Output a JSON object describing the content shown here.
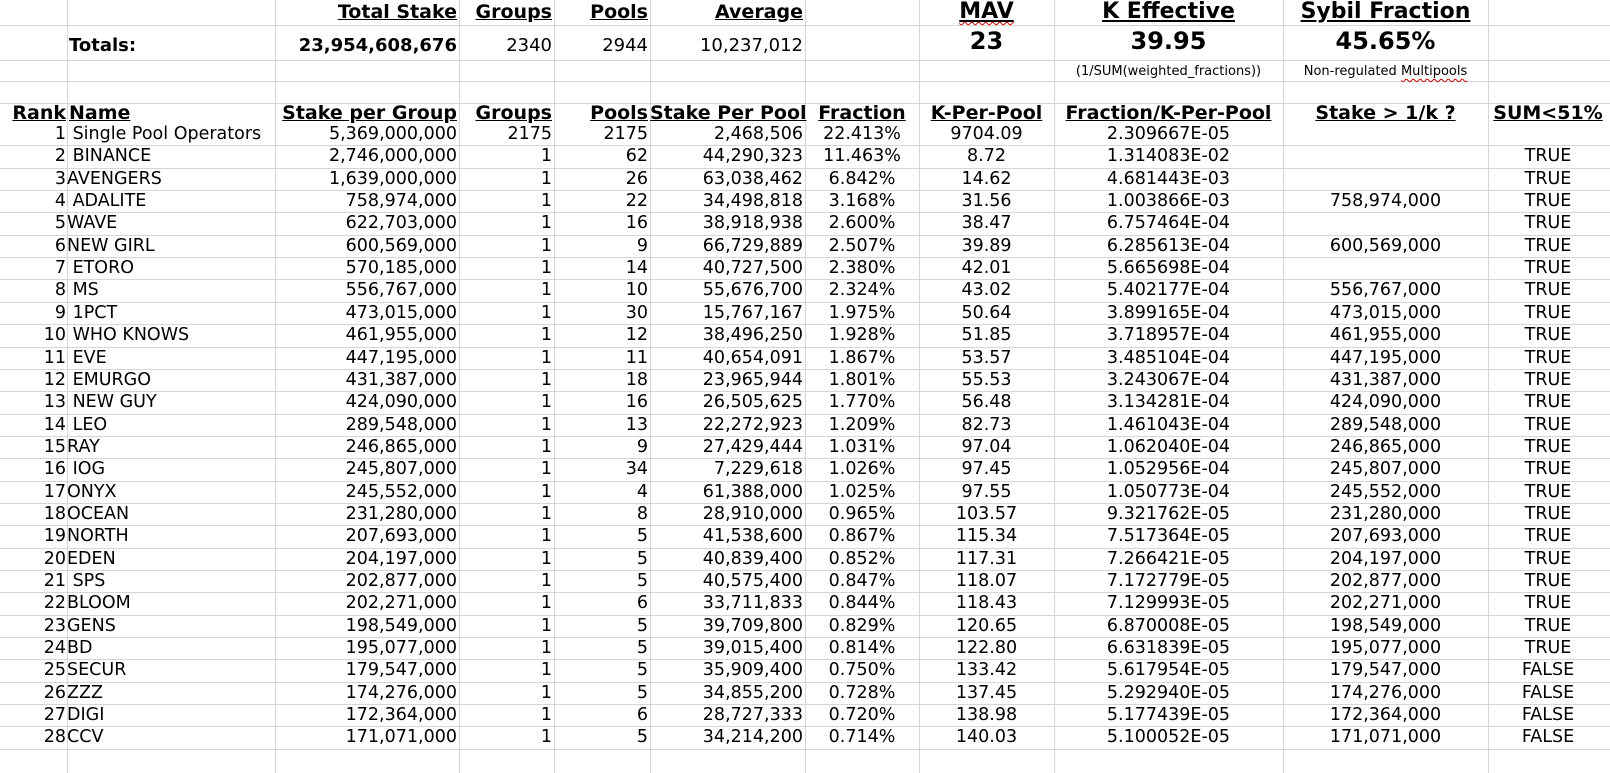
{
  "summary": {
    "headers": {
      "total_stake": "Total Stake",
      "groups": "Groups",
      "pools": "Pools",
      "average": "Average",
      "mav": "MAV",
      "k_effective": "K Effective",
      "sybil_fraction": "Sybil Fraction"
    },
    "totals_label": "Totals:",
    "total_stake": "23,954,608,676",
    "groups": "2340",
    "pools": "2944",
    "average": "10,237,012",
    "mav": "23",
    "k_effective": "39.95",
    "sybil_fraction": "45.65%",
    "k_effective_note": "(1/SUM(weighted_fractions))",
    "sybil_note_prefix": "Non-regulated ",
    "sybil_note_word": "Multipools"
  },
  "table": {
    "columns": {
      "rank": "Rank",
      "name": "Name",
      "stake_per_group": "Stake per Group",
      "groups": "Groups",
      "pools": "Pools",
      "stake_per_pool": "Stake Per Pool",
      "fraction": "Fraction",
      "k_per_pool": "K-Per-Pool",
      "fraction_k": "Fraction/K-Per-Pool",
      "stake_gt": "Stake > 1/k ?",
      "sum_lt": "SUM<51%"
    },
    "rows": [
      {
        "rank": "1",
        "name": " Single Pool Operators",
        "stake": "5,369,000,000",
        "groups": "2175",
        "pools": "2175",
        "spp": "2,468,506",
        "fraction": "22.413%",
        "kpp": "9704.09",
        "fk": "2.309667E-05",
        "sgt": "",
        "sum": ""
      },
      {
        "rank": "2",
        "name": " BINANCE",
        "stake": "2,746,000,000",
        "groups": "1",
        "pools": "62",
        "spp": "44,290,323",
        "fraction": "11.463%",
        "kpp": "8.72",
        "fk": "1.314083E-02",
        "sgt": "",
        "sum": "TRUE"
      },
      {
        "rank": "3",
        "name": "AVENGERS",
        "stake": "1,639,000,000",
        "groups": "1",
        "pools": "26",
        "spp": "63,038,462",
        "fraction": "6.842%",
        "kpp": "14.62",
        "fk": "4.681443E-03",
        "sgt": "",
        "sum": "TRUE"
      },
      {
        "rank": "4",
        "name": " ADALITE",
        "stake": "758,974,000",
        "groups": "1",
        "pools": "22",
        "spp": "34,498,818",
        "fraction": "3.168%",
        "kpp": "31.56",
        "fk": "1.003866E-03",
        "sgt": "758,974,000",
        "sum": "TRUE"
      },
      {
        "rank": "5",
        "name": "WAVE",
        "stake": "622,703,000",
        "groups": "1",
        "pools": "16",
        "spp": "38,918,938",
        "fraction": "2.600%",
        "kpp": "38.47",
        "fk": "6.757464E-04",
        "sgt": "",
        "sum": "TRUE"
      },
      {
        "rank": "6",
        "name": "NEW GIRL",
        "stake": "600,569,000",
        "groups": "1",
        "pools": "9",
        "spp": "66,729,889",
        "fraction": "2.507%",
        "kpp": "39.89",
        "fk": "6.285613E-04",
        "sgt": "600,569,000",
        "sum": "TRUE"
      },
      {
        "rank": "7",
        "name": " ETORO",
        "stake": "570,185,000",
        "groups": "1",
        "pools": "14",
        "spp": "40,727,500",
        "fraction": "2.380%",
        "kpp": "42.01",
        "fk": "5.665698E-04",
        "sgt": "",
        "sum": "TRUE"
      },
      {
        "rank": "8",
        "name": " MS",
        "stake": "556,767,000",
        "groups": "1",
        "pools": "10",
        "spp": "55,676,700",
        "fraction": "2.324%",
        "kpp": "43.02",
        "fk": "5.402177E-04",
        "sgt": "556,767,000",
        "sum": "TRUE"
      },
      {
        "rank": "9",
        "name": " 1PCT",
        "stake": "473,015,000",
        "groups": "1",
        "pools": "30",
        "spp": "15,767,167",
        "fraction": "1.975%",
        "kpp": "50.64",
        "fk": "3.899165E-04",
        "sgt": "473,015,000",
        "sum": "TRUE"
      },
      {
        "rank": "10",
        "name": " WHO KNOWS",
        "stake": "461,955,000",
        "groups": "1",
        "pools": "12",
        "spp": "38,496,250",
        "fraction": "1.928%",
        "kpp": "51.85",
        "fk": "3.718957E-04",
        "sgt": "461,955,000",
        "sum": "TRUE"
      },
      {
        "rank": "11",
        "name": " EVE",
        "stake": "447,195,000",
        "groups": "1",
        "pools": "11",
        "spp": "40,654,091",
        "fraction": "1.867%",
        "kpp": "53.57",
        "fk": "3.485104E-04",
        "sgt": "447,195,000",
        "sum": "TRUE"
      },
      {
        "rank": "12",
        "name": " EMURGO",
        "stake": "431,387,000",
        "groups": "1",
        "pools": "18",
        "spp": "23,965,944",
        "fraction": "1.801%",
        "kpp": "55.53",
        "fk": "3.243067E-04",
        "sgt": "431,387,000",
        "sum": "TRUE"
      },
      {
        "rank": "13",
        "name": " NEW GUY",
        "stake": "424,090,000",
        "groups": "1",
        "pools": "16",
        "spp": "26,505,625",
        "fraction": "1.770%",
        "kpp": "56.48",
        "fk": "3.134281E-04",
        "sgt": "424,090,000",
        "sum": "TRUE"
      },
      {
        "rank": "14",
        "name": " LEO",
        "stake": "289,548,000",
        "groups": "1",
        "pools": "13",
        "spp": "22,272,923",
        "fraction": "1.209%",
        "kpp": "82.73",
        "fk": "1.461043E-04",
        "sgt": "289,548,000",
        "sum": "TRUE"
      },
      {
        "rank": "15",
        "name": "RAY",
        "stake": "246,865,000",
        "groups": "1",
        "pools": "9",
        "spp": "27,429,444",
        "fraction": "1.031%",
        "kpp": "97.04",
        "fk": "1.062040E-04",
        "sgt": "246,865,000",
        "sum": "TRUE"
      },
      {
        "rank": "16",
        "name": " IOG",
        "stake": "245,807,000",
        "groups": "1",
        "pools": "34",
        "spp": "7,229,618",
        "fraction": "1.026%",
        "kpp": "97.45",
        "fk": "1.052956E-04",
        "sgt": "245,807,000",
        "sum": "TRUE"
      },
      {
        "rank": "17",
        "name": "ONYX",
        "stake": "245,552,000",
        "groups": "1",
        "pools": "4",
        "spp": "61,388,000",
        "fraction": "1.025%",
        "kpp": "97.55",
        "fk": "1.050773E-04",
        "sgt": "245,552,000",
        "sum": "TRUE"
      },
      {
        "rank": "18",
        "name": "OCEAN",
        "stake": "231,280,000",
        "groups": "1",
        "pools": "8",
        "spp": "28,910,000",
        "fraction": "0.965%",
        "kpp": "103.57",
        "fk": "9.321762E-05",
        "sgt": "231,280,000",
        "sum": "TRUE"
      },
      {
        "rank": "19",
        "name": "NORTH",
        "stake": "207,693,000",
        "groups": "1",
        "pools": "5",
        "spp": "41,538,600",
        "fraction": "0.867%",
        "kpp": "115.34",
        "fk": "7.517364E-05",
        "sgt": "207,693,000",
        "sum": "TRUE"
      },
      {
        "rank": "20",
        "name": "EDEN",
        "stake": "204,197,000",
        "groups": "1",
        "pools": "5",
        "spp": "40,839,400",
        "fraction": "0.852%",
        "kpp": "117.31",
        "fk": "7.266421E-05",
        "sgt": "204,197,000",
        "sum": "TRUE"
      },
      {
        "rank": "21",
        "name": " SPS",
        "stake": "202,877,000",
        "groups": "1",
        "pools": "5",
        "spp": "40,575,400",
        "fraction": "0.847%",
        "kpp": "118.07",
        "fk": "7.172779E-05",
        "sgt": "202,877,000",
        "sum": "TRUE"
      },
      {
        "rank": "22",
        "name": "BLOOM",
        "stake": "202,271,000",
        "groups": "1",
        "pools": "6",
        "spp": "33,711,833",
        "fraction": "0.844%",
        "kpp": "118.43",
        "fk": "7.129993E-05",
        "sgt": "202,271,000",
        "sum": "TRUE"
      },
      {
        "rank": "23",
        "name": "GENS",
        "stake": "198,549,000",
        "groups": "1",
        "pools": "5",
        "spp": "39,709,800",
        "fraction": "0.829%",
        "kpp": "120.65",
        "fk": "6.870008E-05",
        "sgt": "198,549,000",
        "sum": "TRUE"
      },
      {
        "rank": "24",
        "name": "BD",
        "stake": "195,077,000",
        "groups": "1",
        "pools": "5",
        "spp": "39,015,400",
        "fraction": "0.814%",
        "kpp": "122.80",
        "fk": "6.631839E-05",
        "sgt": "195,077,000",
        "sum": "TRUE"
      },
      {
        "rank": "25",
        "name": "SECUR",
        "stake": "179,547,000",
        "groups": "1",
        "pools": "5",
        "spp": "35,909,400",
        "fraction": "0.750%",
        "kpp": "133.42",
        "fk": "5.617954E-05",
        "sgt": "179,547,000",
        "sum": "FALSE"
      },
      {
        "rank": "26",
        "name": "ZZZ",
        "stake": "174,276,000",
        "groups": "1",
        "pools": "5",
        "spp": "34,855,200",
        "fraction": "0.728%",
        "kpp": "137.45",
        "fk": "5.292940E-05",
        "sgt": "174,276,000",
        "sum": "FALSE"
      },
      {
        "rank": "27",
        "name": "DIGI",
        "stake": "172,364,000",
        "groups": "1",
        "pools": "6",
        "spp": "28,727,333",
        "fraction": "0.720%",
        "kpp": "138.98",
        "fk": "5.177439E-05",
        "sgt": "172,364,000",
        "sum": "FALSE"
      },
      {
        "rank": "28",
        "name": "CCV",
        "stake": "171,071,000",
        "groups": "1",
        "pools": "5",
        "spp": "34,214,200",
        "fraction": "0.714%",
        "kpp": "140.03",
        "fk": "5.100052E-05",
        "sgt": "171,071,000",
        "sum": "FALSE"
      }
    ]
  }
}
